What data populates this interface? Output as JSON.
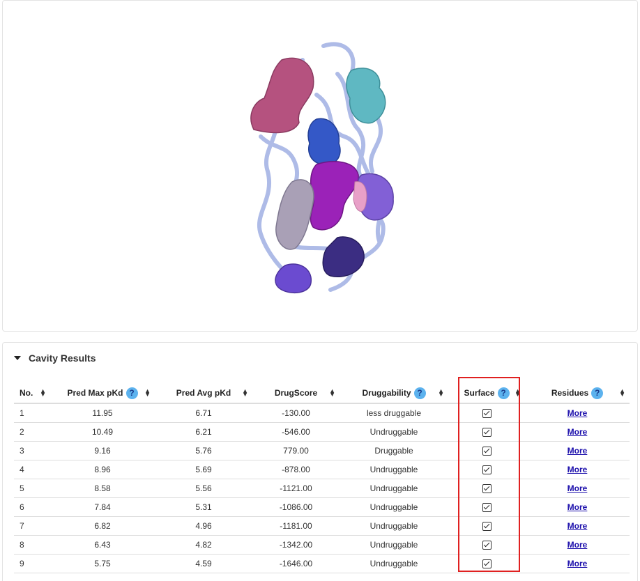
{
  "panel": {
    "title": "Cavity Results"
  },
  "columns": [
    {
      "key": "no",
      "label": "No.",
      "help": false
    },
    {
      "key": "max",
      "label": "Pred Max pKd",
      "help": true
    },
    {
      "key": "avg",
      "label": "Pred Avg pKd",
      "help": false
    },
    {
      "key": "score",
      "label": "DrugScore",
      "help": false
    },
    {
      "key": "drug",
      "label": "Druggability",
      "help": true
    },
    {
      "key": "surface",
      "label": "Surface",
      "help": true
    },
    {
      "key": "res",
      "label": "Residues",
      "help": true
    }
  ],
  "help_glyph": "?",
  "rows": [
    {
      "no": "1",
      "max": "11.95",
      "avg": "6.71",
      "score": "-130.00",
      "drug": "less druggable",
      "surface": true,
      "res": "More"
    },
    {
      "no": "2",
      "max": "10.49",
      "avg": "6.21",
      "score": "-546.00",
      "drug": "Undruggable",
      "surface": true,
      "res": "More"
    },
    {
      "no": "3",
      "max": "9.16",
      "avg": "5.76",
      "score": "779.00",
      "drug": "Druggable",
      "surface": true,
      "res": "More"
    },
    {
      "no": "4",
      "max": "8.96",
      "avg": "5.69",
      "score": "-878.00",
      "drug": "Undruggable",
      "surface": true,
      "res": "More"
    },
    {
      "no": "5",
      "max": "8.58",
      "avg": "5.56",
      "score": "-1121.00",
      "drug": "Undruggable",
      "surface": true,
      "res": "More"
    },
    {
      "no": "6",
      "max": "7.84",
      "avg": "5.31",
      "score": "-1086.00",
      "drug": "Undruggable",
      "surface": true,
      "res": "More"
    },
    {
      "no": "7",
      "max": "6.82",
      "avg": "4.96",
      "score": "-1181.00",
      "drug": "Undruggable",
      "surface": true,
      "res": "More"
    },
    {
      "no": "8",
      "max": "6.43",
      "avg": "4.82",
      "score": "-1342.00",
      "drug": "Undruggable",
      "surface": true,
      "res": "More"
    },
    {
      "no": "9",
      "max": "5.75",
      "avg": "4.59",
      "score": "-1646.00",
      "drug": "Undruggable",
      "surface": true,
      "res": "More"
    }
  ],
  "colors": {
    "accent_help": "#5cb2ee",
    "link": "#1a0dab",
    "highlight": "#e02020",
    "cavity_colors": [
      "#b5527f",
      "#5fb8c2",
      "#3458c7",
      "#9b22b8",
      "#8260d6",
      "#a9a0b6",
      "#3b2d82",
      "#6b4bd0",
      "#e8a0c8"
    ],
    "ribbon": "#aab8e6"
  }
}
